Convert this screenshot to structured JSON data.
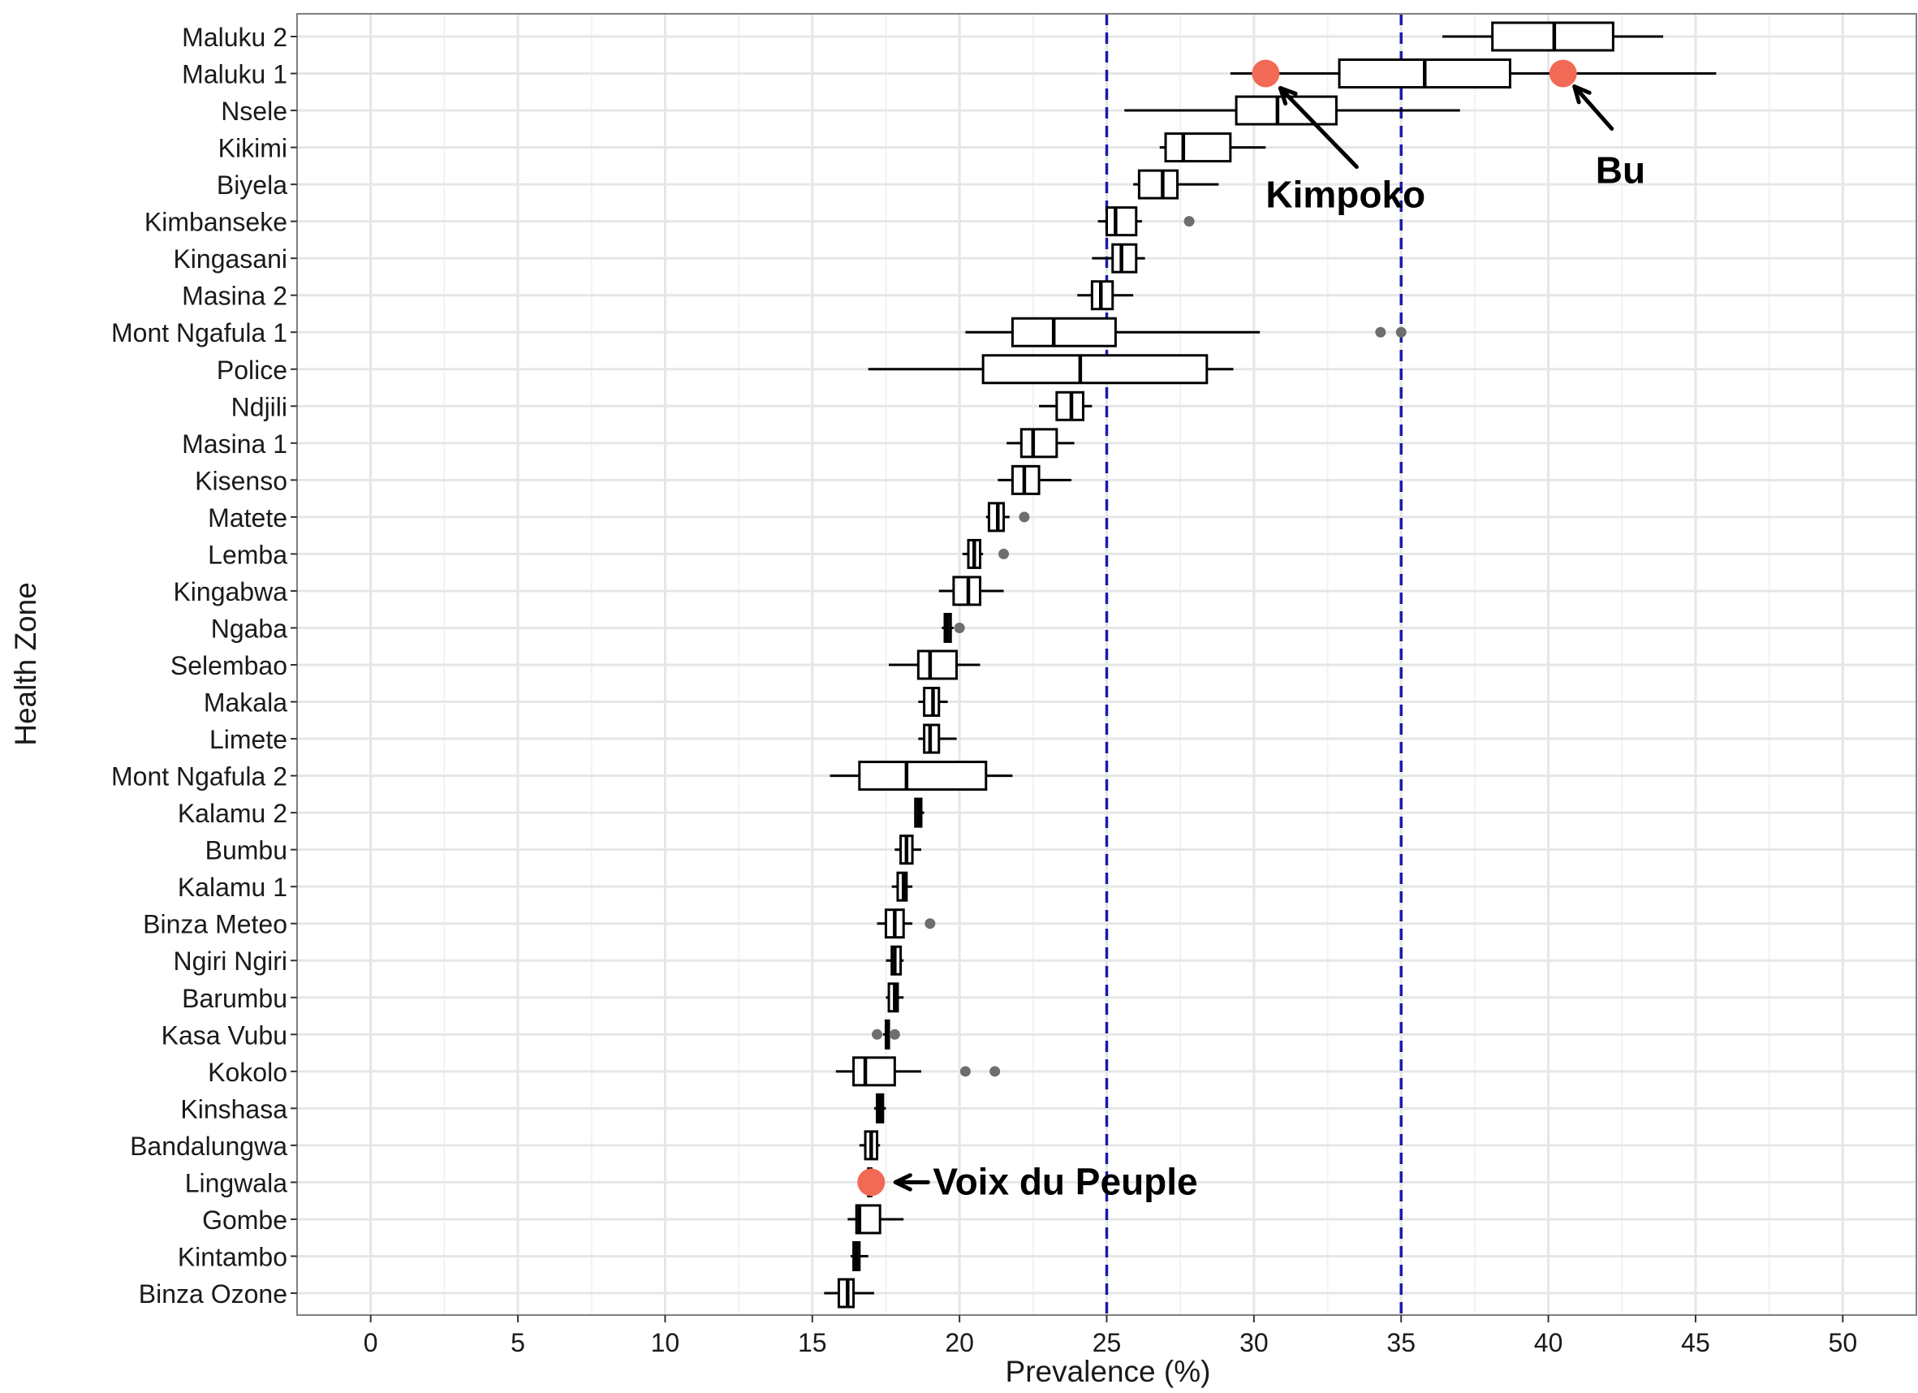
{
  "chart_data": {
    "type": "boxplot",
    "orientation": "horizontal",
    "title": "",
    "xlabel": "Prevalence (%)",
    "ylabel": "Health Zone",
    "xlim": [
      -2.5,
      52.5
    ],
    "x_ticks": [
      0,
      5,
      10,
      15,
      20,
      25,
      30,
      35,
      40,
      45,
      50
    ],
    "grid": true,
    "reference_lines": [
      25,
      35
    ],
    "categories": [
      "Maluku 2",
      "Maluku 1",
      "Nsele",
      "Kikimi",
      "Biyela",
      "Kimbanseke",
      "Kingasani",
      "Masina 2",
      "Mont Ngafula 1",
      "Police",
      "Ndjili",
      "Masina 1",
      "Kisenso",
      "Matete",
      "Lemba",
      "Kingabwa",
      "Ngaba",
      "Selembao",
      "Makala",
      "Limete",
      "Mont Ngafula 2",
      "Kalamu 2",
      "Bumbu",
      "Kalamu 1",
      "Binza Meteo",
      "Ngiri Ngiri",
      "Barumbu",
      "Kasa Vubu",
      "Kokolo",
      "Kinshasa",
      "Bandalungwa",
      "Lingwala",
      "Gombe",
      "Kintambo",
      "Binza Ozone"
    ],
    "boxes": [
      {
        "zone": "Maluku 2",
        "min": 36.4,
        "q1": 38.1,
        "median": 40.2,
        "q3": 42.2,
        "max": 43.9,
        "outliers": []
      },
      {
        "zone": "Maluku 1",
        "min": 29.2,
        "q1": 32.9,
        "median": 35.8,
        "q3": 38.7,
        "max": 45.7,
        "outliers": []
      },
      {
        "zone": "Nsele",
        "min": 25.6,
        "q1": 29.4,
        "median": 30.8,
        "q3": 32.8,
        "max": 37.0,
        "outliers": []
      },
      {
        "zone": "Kikimi",
        "min": 26.8,
        "q1": 27.0,
        "median": 27.6,
        "q3": 29.2,
        "max": 30.4,
        "outliers": []
      },
      {
        "zone": "Biyela",
        "min": 25.9,
        "q1": 26.1,
        "median": 26.9,
        "q3": 27.4,
        "max": 28.8,
        "outliers": []
      },
      {
        "zone": "Kimbanseke",
        "min": 24.7,
        "q1": 25.0,
        "median": 25.3,
        "q3": 26.0,
        "max": 26.2,
        "outliers": [
          27.8
        ]
      },
      {
        "zone": "Kingasani",
        "min": 24.5,
        "q1": 25.2,
        "median": 25.5,
        "q3": 26.0,
        "max": 26.3,
        "outliers": []
      },
      {
        "zone": "Masina 2",
        "min": 24.0,
        "q1": 24.5,
        "median": 24.8,
        "q3": 25.2,
        "max": 25.9,
        "outliers": []
      },
      {
        "zone": "Mont Ngafula 1",
        "min": 20.2,
        "q1": 21.8,
        "median": 23.2,
        "q3": 25.3,
        "max": 30.2,
        "outliers": [
          34.3,
          35.0
        ]
      },
      {
        "zone": "Police",
        "min": 16.9,
        "q1": 20.8,
        "median": 24.1,
        "q3": 28.4,
        "max": 29.3,
        "outliers": []
      },
      {
        "zone": "Ndjili",
        "min": 22.7,
        "q1": 23.3,
        "median": 23.8,
        "q3": 24.2,
        "max": 24.5,
        "outliers": []
      },
      {
        "zone": "Masina 1",
        "min": 21.6,
        "q1": 22.1,
        "median": 22.5,
        "q3": 23.3,
        "max": 23.9,
        "outliers": []
      },
      {
        "zone": "Kisenso",
        "min": 21.3,
        "q1": 21.8,
        "median": 22.2,
        "q3": 22.7,
        "max": 23.8,
        "outliers": []
      },
      {
        "zone": "Matete",
        "min": 20.9,
        "q1": 21.0,
        "median": 21.3,
        "q3": 21.5,
        "max": 21.7,
        "outliers": [
          22.2
        ]
      },
      {
        "zone": "Lemba",
        "min": 20.1,
        "q1": 20.3,
        "median": 20.5,
        "q3": 20.7,
        "max": 20.8,
        "outliers": [
          21.5
        ]
      },
      {
        "zone": "Kingabwa",
        "min": 19.3,
        "q1": 19.8,
        "median": 20.3,
        "q3": 20.7,
        "max": 21.5,
        "outliers": []
      },
      {
        "zone": "Ngaba",
        "min": 19.4,
        "q1": 19.5,
        "median": 19.6,
        "q3": 19.7,
        "max": 19.8,
        "outliers": [
          20.0
        ]
      },
      {
        "zone": "Selembao",
        "min": 17.6,
        "q1": 18.6,
        "median": 19.0,
        "q3": 19.9,
        "max": 20.7,
        "outliers": []
      },
      {
        "zone": "Makala",
        "min": 18.6,
        "q1": 18.8,
        "median": 19.1,
        "q3": 19.3,
        "max": 19.6,
        "outliers": []
      },
      {
        "zone": "Limete",
        "min": 18.6,
        "q1": 18.8,
        "median": 19.0,
        "q3": 19.3,
        "max": 19.9,
        "outliers": []
      },
      {
        "zone": "Mont Ngafula 2",
        "min": 15.6,
        "q1": 16.6,
        "median": 18.2,
        "q3": 20.9,
        "max": 21.8,
        "outliers": []
      },
      {
        "zone": "Kalamu 2",
        "min": 18.5,
        "q1": 18.5,
        "median": 18.6,
        "q3": 18.7,
        "max": 18.8,
        "outliers": []
      },
      {
        "zone": "Bumbu",
        "min": 17.8,
        "q1": 18.0,
        "median": 18.2,
        "q3": 18.4,
        "max": 18.7,
        "outliers": []
      },
      {
        "zone": "Kalamu 1",
        "min": 17.7,
        "q1": 17.9,
        "median": 18.1,
        "q3": 18.2,
        "max": 18.4,
        "outliers": []
      },
      {
        "zone": "Binza Meteo",
        "min": 17.2,
        "q1": 17.5,
        "median": 17.8,
        "q3": 18.1,
        "max": 18.4,
        "outliers": [
          19.0
        ]
      },
      {
        "zone": "Ngiri Ngiri",
        "min": 17.5,
        "q1": 17.7,
        "median": 17.8,
        "q3": 18.0,
        "max": 18.1,
        "outliers": []
      },
      {
        "zone": "Barumbu",
        "min": 17.5,
        "q1": 17.6,
        "median": 17.8,
        "q3": 17.9,
        "max": 18.1,
        "outliers": []
      },
      {
        "zone": "Kasa Vubu",
        "min": 17.4,
        "q1": 17.5,
        "median": 17.55,
        "q3": 17.6,
        "max": 17.7,
        "outliers": [
          17.2,
          17.8
        ]
      },
      {
        "zone": "Kokolo",
        "min": 15.8,
        "q1": 16.4,
        "median": 16.8,
        "q3": 17.8,
        "max": 18.7,
        "outliers": [
          20.2,
          21.2
        ]
      },
      {
        "zone": "Kinshasa",
        "min": 17.1,
        "q1": 17.2,
        "median": 17.3,
        "q3": 17.4,
        "max": 17.5,
        "outliers": []
      },
      {
        "zone": "Bandalungwa",
        "min": 16.6,
        "q1": 16.8,
        "median": 17.0,
        "q3": 17.2,
        "max": 17.3,
        "outliers": []
      },
      {
        "zone": "Lingwala",
        "min": 16.9,
        "q1": 16.9,
        "median": 17.0,
        "q3": 17.0,
        "max": 17.1,
        "outliers": []
      },
      {
        "zone": "Gombe",
        "min": 16.2,
        "q1": 16.5,
        "median": 16.6,
        "q3": 17.3,
        "max": 18.1,
        "outliers": []
      },
      {
        "zone": "Kintambo",
        "min": 16.3,
        "q1": 16.4,
        "median": 16.5,
        "q3": 16.6,
        "max": 16.9,
        "outliers": []
      },
      {
        "zone": "Binza Ozone",
        "min": 15.4,
        "q1": 15.9,
        "median": 16.2,
        "q3": 16.4,
        "max": 17.1,
        "outliers": []
      }
    ],
    "highlight_points": [
      {
        "zone": "Maluku 1",
        "x": 30.4
      },
      {
        "zone": "Maluku 1",
        "x": 40.5
      },
      {
        "zone": "Lingwala",
        "x": 17.0
      }
    ],
    "annotations": [
      {
        "label": "Kimpoko",
        "zone": "Maluku 1",
        "x": 30.4,
        "placement": "below-right"
      },
      {
        "label": "Bu",
        "zone": "Maluku 1",
        "x": 40.5,
        "placement": "below-right"
      },
      {
        "label": "Voix du Peuple",
        "zone": "Lingwala",
        "x": 17.0,
        "placement": "right"
      }
    ],
    "colors": {
      "box_stroke": "#000000",
      "grid_major": "#e6e6e6",
      "grid_minor": "#f2f2f2",
      "panel_border": "#7f7f7f",
      "reference_line": "#1a1aaa",
      "outlier": "#6e6e6e",
      "highlight": "#f26a55",
      "text": "#1a1a1a"
    }
  }
}
